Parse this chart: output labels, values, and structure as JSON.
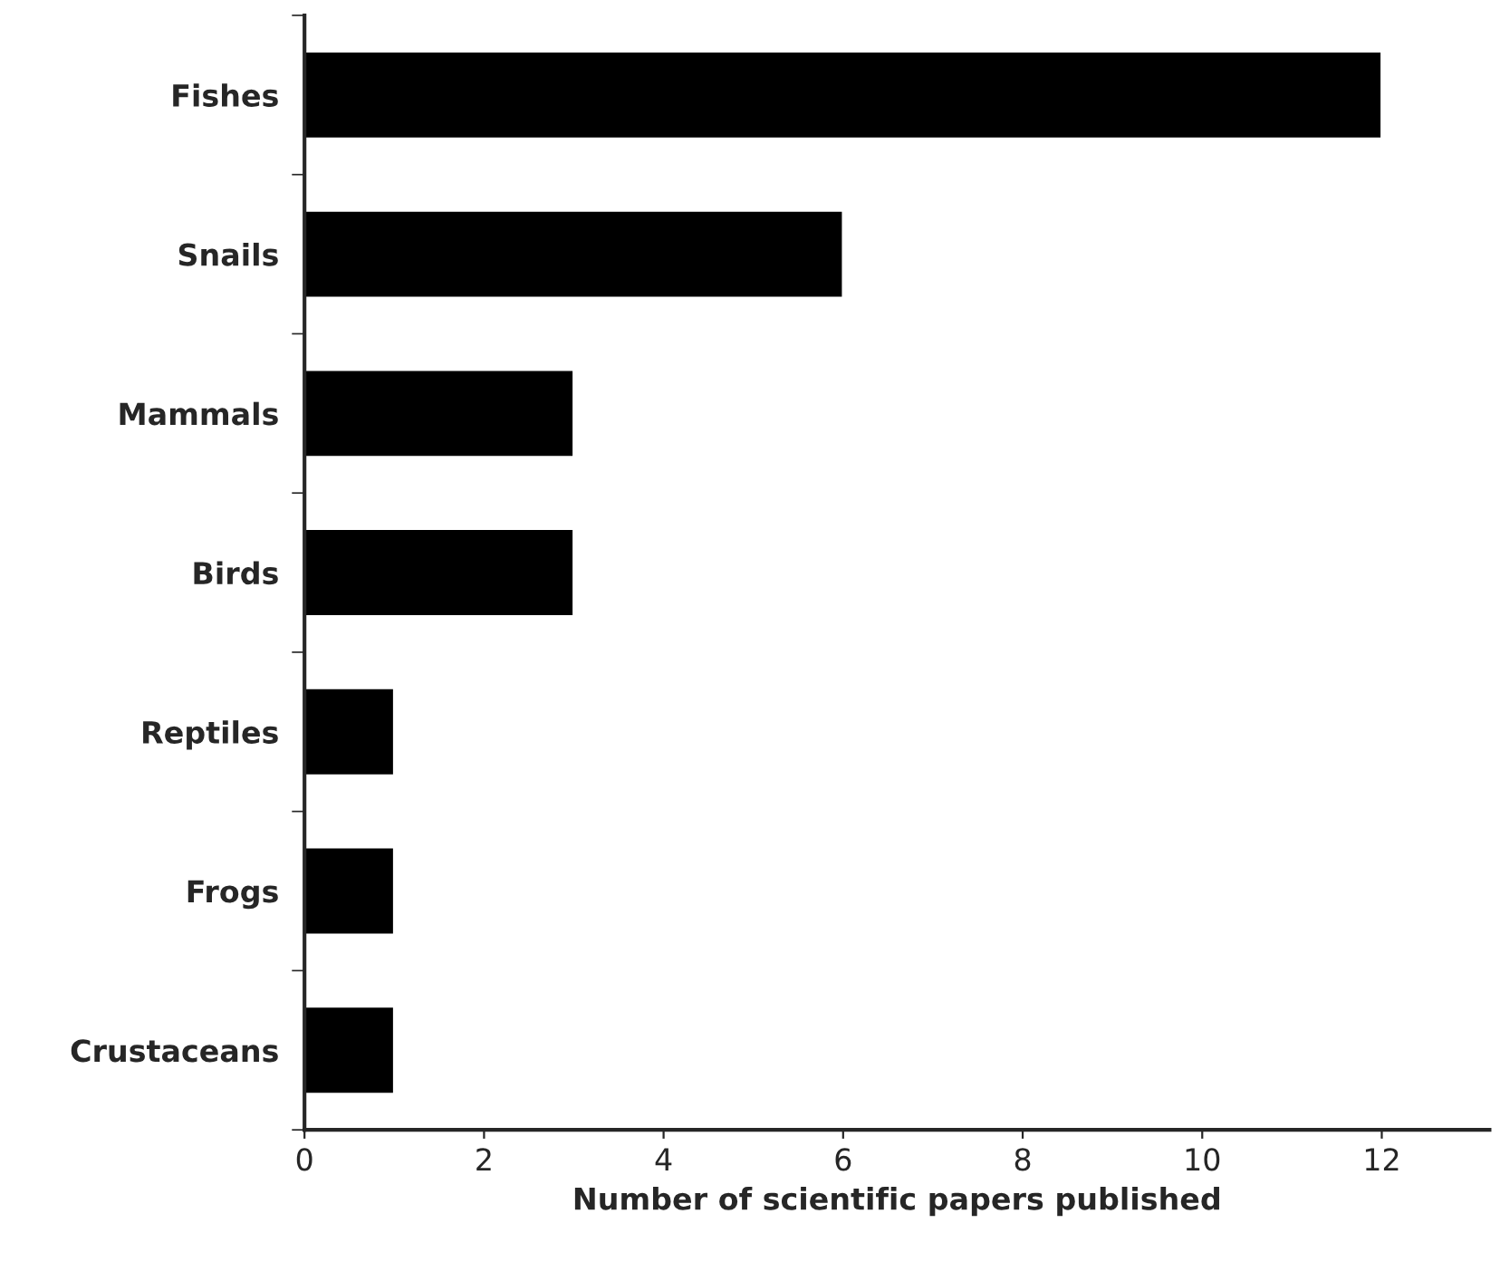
{
  "chart_data": {
    "type": "bar",
    "orientation": "horizontal",
    "categories": [
      "Fishes",
      "Snails",
      "Mammals",
      "Birds",
      "Reptiles",
      "Frogs",
      "Crustaceans"
    ],
    "values": [
      12,
      6,
      3,
      3,
      1,
      1,
      1
    ],
    "color": "#000000",
    "xlabel": "Number of scientific papers published",
    "xlim": [
      0,
      13.2
    ],
    "xticks": [
      0,
      2,
      4,
      6,
      8,
      10,
      12
    ],
    "grid": false
  }
}
